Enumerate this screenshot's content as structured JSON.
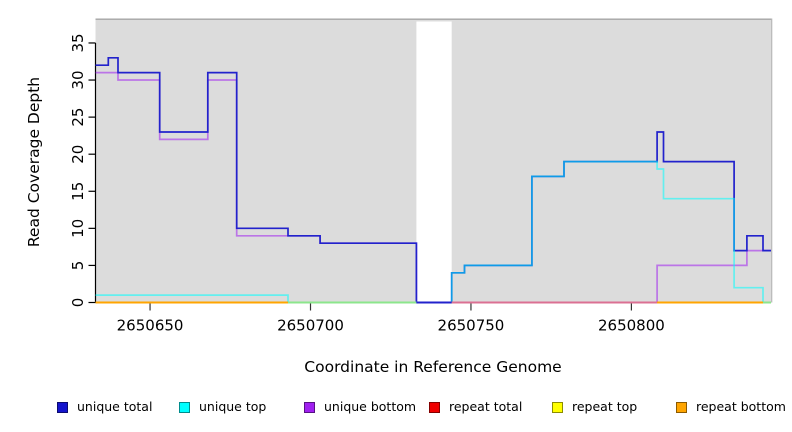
{
  "figure": {
    "xlabel": "Coordinate in Reference Genome",
    "ylabel": "Read Coverage Depth"
  },
  "legend": {
    "position": "bottom",
    "items": [
      {
        "label": "unique total",
        "color": "#1414cc"
      },
      {
        "label": "unique top",
        "color": "#00ffff"
      },
      {
        "label": "unique bottom",
        "color": "#a020f0"
      },
      {
        "label": "repeat total",
        "color": "#ee0000"
      },
      {
        "label": "repeat top",
        "color": "#ffff00"
      },
      {
        "label": "repeat bottom",
        "color": "#ffa500"
      }
    ]
  },
  "chart_data": {
    "type": "line",
    "subtype": "step-after-coverage",
    "title": "",
    "xlabel": "Coordinate in Reference Genome",
    "ylabel": "Read Coverage Depth",
    "xlim": [
      2650633,
      2650843.5
    ],
    "ylim": [
      0,
      38.3
    ],
    "xticks": [
      2650650,
      2650700,
      2650750,
      2650800
    ],
    "yticks": [
      0,
      5,
      10,
      15,
      20,
      25,
      30,
      35
    ],
    "grid": false,
    "plot_area_color": "#dcdcdc",
    "gap_region": {
      "x_start": 2650733,
      "x_end": 2650744,
      "color": "#ffffff"
    },
    "draw_order": [
      "repeat total",
      "repeat top",
      "repeat bottom",
      "unique bottom",
      "unique total",
      "unique top"
    ],
    "series": [
      {
        "name": "unique total",
        "line_color": "#2222cc",
        "line_opacity": 1,
        "points": [
          [
            2650633,
            32
          ],
          [
            2650637,
            33
          ],
          [
            2650640,
            31
          ],
          [
            2650653,
            23
          ],
          [
            2650668,
            31
          ],
          [
            2650677,
            10
          ],
          [
            2650693,
            9
          ],
          [
            2650703,
            8
          ],
          [
            2650733,
            0
          ],
          [
            2650744,
            4
          ],
          [
            2650748,
            5
          ],
          [
            2650769,
            17
          ],
          [
            2650779,
            19
          ],
          [
            2650808,
            23
          ],
          [
            2650810,
            19
          ],
          [
            2650832,
            7
          ],
          [
            2650836,
            9
          ],
          [
            2650841,
            7
          ]
        ]
      },
      {
        "name": "unique top",
        "line_color": "#00ffff",
        "line_opacity": 0.55,
        "points": [
          [
            2650633,
            1
          ],
          [
            2650693,
            0
          ],
          [
            2650744,
            4
          ],
          [
            2650748,
            5
          ],
          [
            2650769,
            17
          ],
          [
            2650779,
            19
          ],
          [
            2650808,
            18
          ],
          [
            2650810,
            14
          ],
          [
            2650832,
            2
          ],
          [
            2650841,
            0
          ]
        ]
      },
      {
        "name": "unique bottom",
        "line_color": "#a020f0",
        "line_opacity": 0.55,
        "points": [
          [
            2650633,
            31
          ],
          [
            2650640,
            30
          ],
          [
            2650653,
            22
          ],
          [
            2650668,
            30
          ],
          [
            2650677,
            9
          ],
          [
            2650703,
            8
          ],
          [
            2650733,
            0
          ],
          [
            2650808,
            5
          ],
          [
            2650836,
            7
          ]
        ]
      },
      {
        "name": "repeat total",
        "line_color": "#ee0000",
        "line_opacity": 1,
        "points": [
          [
            2650633,
            0
          ]
        ]
      },
      {
        "name": "repeat top",
        "line_color": "#ffff00",
        "line_opacity": 1,
        "points": [
          [
            2650633,
            0
          ]
        ]
      },
      {
        "name": "repeat bottom",
        "line_color": "#ffa500",
        "line_opacity": 1,
        "points": [
          [
            2650633,
            0
          ]
        ]
      }
    ],
    "baseline_overdraw_segments": [
      {
        "x_start": 2650633,
        "x_end": 2650693,
        "color": "#ffa500"
      },
      {
        "x_start": 2650693,
        "x_end": 2650733,
        "color": "#8ce68c"
      },
      {
        "x_start": 2650733,
        "x_end": 2650744,
        "color": "#2222cc"
      },
      {
        "x_start": 2650744,
        "x_end": 2650808,
        "color": "#db7093"
      },
      {
        "x_start": 2650808,
        "x_end": 2650841,
        "color": "#ffa500"
      },
      {
        "x_start": 2650841,
        "x_end": 2650843.5,
        "color": "#8ce68c"
      }
    ]
  }
}
